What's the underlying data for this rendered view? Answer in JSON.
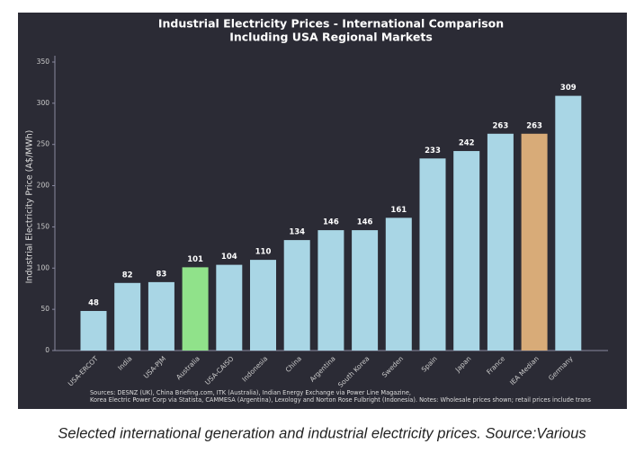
{
  "chart_data": {
    "type": "bar",
    "title": [
      "Industrial Electricity Prices - International Comparison",
      "Including USA Regional Markets"
    ],
    "y_label": "Industrial Electricity Price (A$/MWh)",
    "categories": [
      "USA-ERCOT",
      "India",
      "USA-PJM",
      "Australia",
      "USA-CAISO",
      "Indonesia",
      "China",
      "Argentina",
      "South Korea",
      "Sweden",
      "Spain",
      "Japan",
      "France",
      "IEA Median",
      "Germany"
    ],
    "values": [
      48,
      82,
      83,
      101,
      104,
      110,
      134,
      146,
      146,
      161,
      233,
      242,
      263,
      263,
      309
    ],
    "colors": [
      "#a9d6e5",
      "#a9d6e5",
      "#a9d6e5",
      "#90e28a",
      "#a9d6e5",
      "#a9d6e5",
      "#a9d6e5",
      "#a9d6e5",
      "#a9d6e5",
      "#a9d6e5",
      "#a9d6e5",
      "#a9d6e5",
      "#a9d6e5",
      "#d8ab78",
      "#a9d6e5"
    ],
    "ylim": [
      0,
      350
    ],
    "yticks": [
      0,
      50,
      100,
      150,
      200,
      250,
      300,
      350
    ],
    "grid": false,
    "notes": [
      "Sources: DESNZ (UK), China Briefing.com, ITK (Australia), Indian Energy Exchange via Power Line Magazine,",
      "Korea Electric Power Corp via Statista, CAMMESA (Argentina), Lexology and Norton Rose Fulbright (Indonesia). Notes: Wholesale prices shown; retail prices include trans"
    ]
  },
  "caption": "Selected international generation and industrial electricity prices. Source:Various"
}
